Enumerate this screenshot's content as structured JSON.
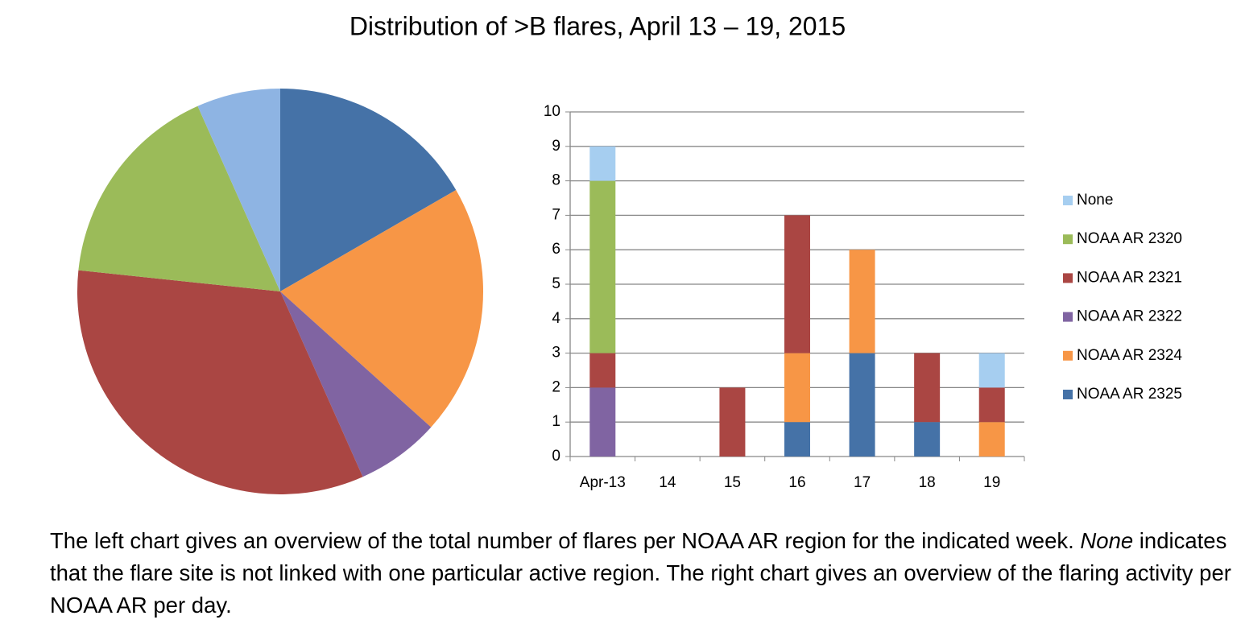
{
  "title": "Distribution of >B flares, April 13 – 19, 2015",
  "caption": [
    {
      "text": "The left chart gives an overview of the total number of flares per NOAA AR region for the indicated week. "
    },
    {
      "text": "None",
      "italic": true
    },
    {
      "text": " indicates that the flare site is not linked with one particular active region. The right chart gives an overview of the flaring activity per NOAA AR per day."
    }
  ],
  "chart_data": [
    {
      "type": "pie",
      "values": [
        5,
        6,
        2,
        10,
        5,
        2
      ],
      "colors": [
        "#4572a7",
        "#f79646",
        "#8064a2",
        "#aa4643",
        "#9bbb59",
        "#8eb4e3"
      ]
    },
    {
      "type": "stacked_bar",
      "categories": [
        "Apr-13",
        "14",
        "15",
        "16",
        "17",
        "18",
        "19"
      ],
      "series": [
        {
          "name": "NOAA AR 2325",
          "color": "#4572a7",
          "values": [
            0,
            0,
            0,
            1,
            3,
            1,
            0
          ]
        },
        {
          "name": "NOAA AR 2324",
          "color": "#f79646",
          "values": [
            0,
            0,
            0,
            2,
            3,
            0,
            1
          ]
        },
        {
          "name": "NOAA AR 2322",
          "color": "#8064a2",
          "values": [
            2,
            0,
            0,
            0,
            0,
            0,
            0
          ]
        },
        {
          "name": "NOAA AR 2321",
          "color": "#aa4643",
          "values": [
            1,
            0,
            2,
            4,
            0,
            2,
            1
          ]
        },
        {
          "name": "NOAA AR 2320",
          "color": "#9bbb59",
          "values": [
            5,
            0,
            0,
            0,
            0,
            0,
            0
          ]
        },
        {
          "name": "None",
          "color": "#a6cef0",
          "values": [
            1,
            0,
            0,
            0,
            0,
            0,
            1
          ]
        }
      ],
      "ylim": [
        0,
        10
      ],
      "yticks": [
        0,
        1,
        2,
        3,
        4,
        5,
        6,
        7,
        8,
        9,
        10
      ],
      "grid": true,
      "legend": "right"
    }
  ]
}
